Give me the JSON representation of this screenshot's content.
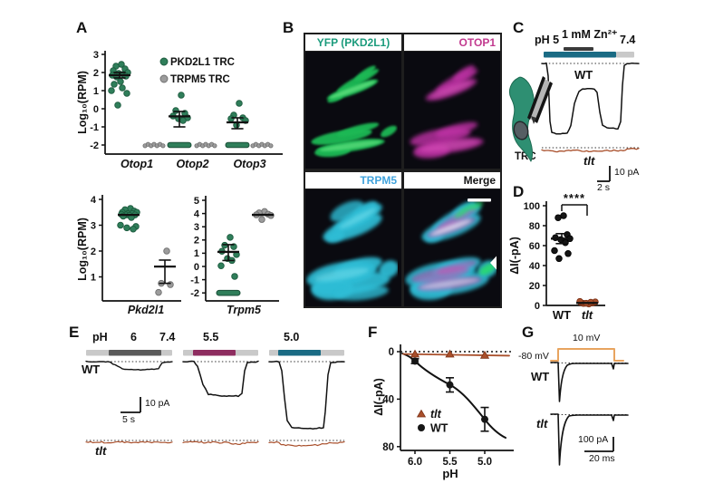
{
  "panels": {
    "A": {
      "label": "A"
    },
    "B": {
      "label": "B",
      "quadrants": [
        {
          "title": "YFP (PKD2L1)",
          "title_color": "#1B9B7C",
          "align": "center"
        },
        {
          "title": "OTOP1",
          "title_color": "#C23A8F",
          "align": "right"
        },
        {
          "title": "TRPM5",
          "title_color": "#41A3DC",
          "align": "right"
        },
        {
          "title": "Merge",
          "title_color": "#141414",
          "align": "right"
        }
      ]
    },
    "C": {
      "label": "C",
      "ph_left": "pH 5",
      "zn_label": "1 mM Zn²⁺",
      "ph_right": "7.4",
      "trace1": "WT",
      "trace2": "tlt",
      "cell_label": "TRC",
      "scale_v": "10 pA",
      "scale_h": "2 s"
    },
    "D": {
      "label": "D",
      "significance": "****"
    },
    "E": {
      "label": "E",
      "ph_label": "pH",
      "cond1": "6",
      "cond1_end": "7.4",
      "cond2": "5.5",
      "cond3": "5.0",
      "trace1": "WT",
      "trace2": "tlt",
      "scale_v": "10 pA",
      "scale_h": "5 s"
    },
    "F": {
      "label": "F"
    },
    "G": {
      "label": "G",
      "pulse_label": "10 mV",
      "holding_label": "-80 mV",
      "trace1": "WT",
      "trace2": "tlt",
      "scale_v": "100 pA",
      "scale_h": "20 ms"
    }
  },
  "chart_data": [
    {
      "id": "A_top",
      "type": "scatter",
      "ylabel": "Log₁₀(RPM)",
      "ylim": [
        -2,
        3
      ],
      "yticks": [
        3,
        2,
        1,
        0,
        -1,
        -2
      ],
      "categories": [
        "Otop1",
        "Otop2",
        "Otop3"
      ],
      "legend": [
        "PKD2L1 TRC",
        "TRPM5 TRC"
      ],
      "series": [
        {
          "name": "PKD2L1 TRC",
          "color": "#2F7E5A",
          "data": [
            {
              "category": "Otop1",
              "points": [
                2.45,
                2.35,
                2.2,
                2.1,
                2.0,
                1.95,
                1.9,
                1.85,
                1.8,
                1.75,
                1.5,
                1.35,
                1.15,
                1.0,
                0.85,
                0.2
              ],
              "mean": 1.85,
              "sem": [
                1.7,
                2.0
              ],
              "floor_at": null
            },
            {
              "category": "Otop2",
              "points": [
                0.75,
                -0.1,
                -0.25,
                -0.4,
                -0.5,
                -0.55,
                -0.65
              ],
              "mean": -0.42,
              "sem": [
                -1.0,
                -0.15
              ],
              "floor_at": -2
            },
            {
              "category": "Otop3",
              "points": [
                0.3,
                -0.35,
                -0.5,
                -0.55,
                -0.65,
                -0.9
              ],
              "mean": -0.75,
              "sem": [
                -1.1,
                -0.5
              ],
              "floor_at": -2
            }
          ]
        },
        {
          "name": "TRPM5 TRC",
          "color": "#9C9C9C",
          "data": [
            {
              "category": "Otop1",
              "points": [],
              "floor_at": -2
            },
            {
              "category": "Otop2",
              "points": [],
              "floor_at": -2
            },
            {
              "category": "Otop3",
              "points": [],
              "floor_at": -2
            }
          ]
        }
      ]
    },
    {
      "id": "A_Pkd2l1",
      "type": "scatter",
      "ylabel": "Log₁₀(RPM)",
      "ylim": [
        0.3,
        4
      ],
      "yticks": [
        4,
        3,
        2,
        1
      ],
      "categories": [
        "Pkd2l1"
      ],
      "columns": [
        {
          "name": "PKD2L1 TRC",
          "color": "#2F7E5A",
          "points": [
            3.65,
            3.6,
            3.55,
            3.5,
            3.5,
            3.45,
            3.45,
            3.42,
            3.4,
            3.4,
            3.38,
            3.35,
            3.3,
            3.0,
            2.95,
            2.9,
            2.85
          ],
          "mean": 3.4
        },
        {
          "name": "TRPM5 TRC",
          "color": "#9C9C9C",
          "points": [
            2.0,
            0.75,
            0.7,
            0.4
          ],
          "mean": 1.4,
          "sem": [
            0.75,
            1.65
          ]
        }
      ]
    },
    {
      "id": "A_Trpm5",
      "type": "scatter",
      "ylim": [
        -2,
        5
      ],
      "yticks": [
        5,
        4,
        3,
        2,
        1,
        0,
        -1,
        -2
      ],
      "categories": [
        "Trpm5"
      ],
      "columns": [
        {
          "name": "PKD2L1 TRC",
          "color": "#2F7E5A",
          "points": [
            2.2,
            1.6,
            1.5,
            1.15,
            0.9,
            0.6,
            0.45,
            0.05,
            -0.75
          ],
          "mean": 1.1,
          "sem": [
            0.45,
            1.65
          ],
          "floor_at": -2
        },
        {
          "name": "TRPM5 TRC",
          "color": "#9C9C9C",
          "points": [
            4.15,
            4.05,
            3.95,
            3.9,
            3.85,
            3.55
          ],
          "mean": 3.9
        }
      ]
    },
    {
      "id": "D",
      "type": "scatter",
      "ylabel": "ΔI(-pA)",
      "ylim": [
        0,
        100
      ],
      "yticks": [
        0,
        20,
        40,
        60,
        80,
        100
      ],
      "significance": "****",
      "columns": [
        {
          "name": "WT",
          "color": "#161616",
          "points": [
            90,
            88,
            71,
            68,
            67,
            66,
            63,
            55,
            52,
            47
          ],
          "mean": 67,
          "sem": [
            62,
            72
          ]
        },
        {
          "name": "tlt",
          "color": "#A94F2B",
          "points": [
            1.5,
            2,
            2.5,
            3,
            3.5,
            2.2,
            3.2,
            4
          ],
          "mean": 2.5
        }
      ]
    },
    {
      "id": "F",
      "type": "line-scatter",
      "xlabel": "pH",
      "ylabel": "ΔI(-pA)",
      "x": [
        6.0,
        5.5,
        5.0
      ],
      "xticks": [
        "6.0",
        "5.5",
        "5.0"
      ],
      "yticks": [
        0,
        40,
        80
      ],
      "y_direction": "down",
      "series": [
        {
          "name": "tlt",
          "marker": "triangle",
          "color": "#A94F2B",
          "values": [
            2,
            2,
            3
          ]
        },
        {
          "name": "WT",
          "marker": "circle",
          "color": "#161616",
          "values": [
            8,
            28,
            57
          ],
          "errors": [
            2,
            6,
            10
          ]
        }
      ]
    }
  ],
  "colors": {
    "pkd2l1_green": "#2F7E5A",
    "trpm5_gray": "#9C9C9C",
    "teal_bar": "#1A6B84",
    "maroon_bar": "#8E2D60",
    "gray_bar": "#5B5B5B",
    "light_gray_bar": "#C9C9C9",
    "zn_bar": "#3A3A3A",
    "tlt_trace": "#A94F2B",
    "pulse_orange": "#E8A45F",
    "cell_teal": "#2E8F72"
  }
}
